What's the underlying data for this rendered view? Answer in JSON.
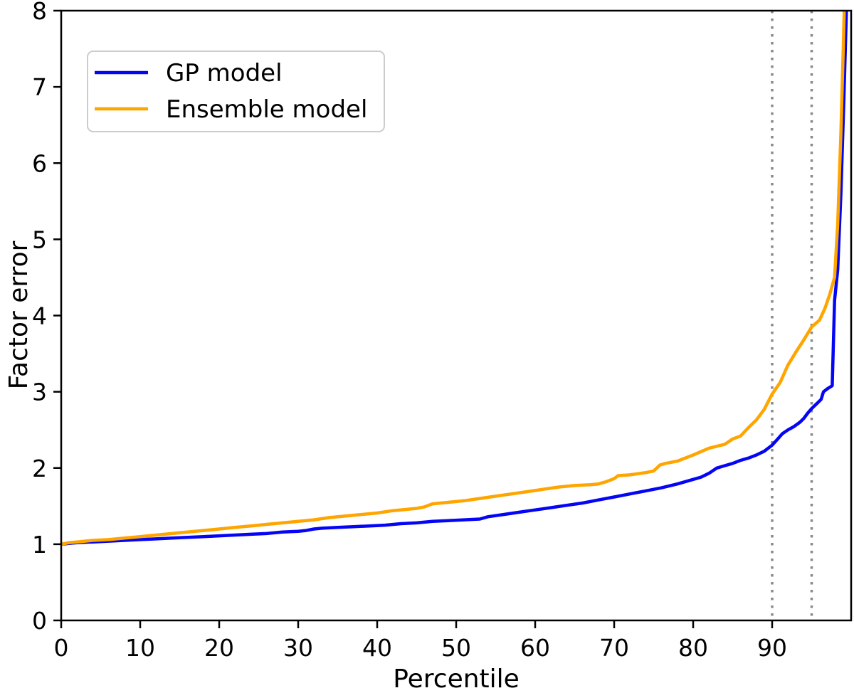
{
  "chart_data": {
    "type": "line",
    "title": "",
    "xlabel": "Percentile",
    "ylabel": "Factor error",
    "xlim": [
      0,
      100
    ],
    "ylim": [
      0,
      8
    ],
    "xticks": [
      0,
      10,
      20,
      30,
      40,
      50,
      60,
      70,
      80,
      90
    ],
    "yticks": [
      0,
      1,
      2,
      3,
      4,
      5,
      6,
      7,
      8
    ],
    "grid": false,
    "background_color": "#ffffff",
    "spine_color": "#000000",
    "legend": {
      "position": "upper left",
      "entries": [
        "GP model",
        "Ensemble model"
      ]
    },
    "vlines": [
      {
        "x": 90,
        "style": "dotted",
        "color": "#8a8a8a"
      },
      {
        "x": 95,
        "style": "dotted",
        "color": "#8a8a8a"
      }
    ],
    "series": [
      {
        "name": "GP model",
        "color": "#0505f5",
        "points": [
          [
            0,
            1.0
          ],
          [
            1,
            1.01
          ],
          [
            2,
            1.02
          ],
          [
            4,
            1.03
          ],
          [
            6,
            1.04
          ],
          [
            8,
            1.05
          ],
          [
            10,
            1.06
          ],
          [
            12,
            1.07
          ],
          [
            14,
            1.08
          ],
          [
            16,
            1.09
          ],
          [
            18,
            1.1
          ],
          [
            20,
            1.11
          ],
          [
            22,
            1.12
          ],
          [
            24,
            1.13
          ],
          [
            26,
            1.14
          ],
          [
            28,
            1.16
          ],
          [
            30,
            1.17
          ],
          [
            31,
            1.18
          ],
          [
            32,
            1.2
          ],
          [
            33,
            1.21
          ],
          [
            35,
            1.22
          ],
          [
            37,
            1.23
          ],
          [
            39,
            1.24
          ],
          [
            41,
            1.25
          ],
          [
            43,
            1.27
          ],
          [
            45,
            1.28
          ],
          [
            47,
            1.3
          ],
          [
            49,
            1.31
          ],
          [
            51,
            1.32
          ],
          [
            53,
            1.33
          ],
          [
            54,
            1.36
          ],
          [
            56,
            1.39
          ],
          [
            58,
            1.42
          ],
          [
            60,
            1.45
          ],
          [
            62,
            1.48
          ],
          [
            64,
            1.51
          ],
          [
            66,
            1.54
          ],
          [
            68,
            1.58
          ],
          [
            70,
            1.62
          ],
          [
            72,
            1.66
          ],
          [
            74,
            1.7
          ],
          [
            76,
            1.74
          ],
          [
            78,
            1.79
          ],
          [
            80,
            1.85
          ],
          [
            81,
            1.88
          ],
          [
            82,
            1.93
          ],
          [
            83,
            2.0
          ],
          [
            84,
            2.03
          ],
          [
            85,
            2.06
          ],
          [
            86,
            2.1
          ],
          [
            87,
            2.13
          ],
          [
            88,
            2.17
          ],
          [
            89,
            2.22
          ],
          [
            90,
            2.3
          ],
          [
            90.7,
            2.38
          ],
          [
            91.3,
            2.45
          ],
          [
            92,
            2.5
          ],
          [
            92.7,
            2.54
          ],
          [
            93.5,
            2.6
          ],
          [
            94,
            2.65
          ],
          [
            94.5,
            2.72
          ],
          [
            95,
            2.78
          ],
          [
            95.7,
            2.85
          ],
          [
            96.2,
            2.9
          ],
          [
            96.5,
            3.0
          ],
          [
            97,
            3.04
          ],
          [
            97.6,
            3.08
          ],
          [
            97.9,
            4.2
          ],
          [
            98.3,
            4.6
          ],
          [
            98.7,
            5.6
          ],
          [
            99.1,
            6.9
          ],
          [
            99.4,
            8.0
          ],
          [
            99.6,
            8.6
          ]
        ]
      },
      {
        "name": "Ensemble model",
        "color": "#ffa500",
        "points": [
          [
            0,
            1.0
          ],
          [
            1,
            1.02
          ],
          [
            2,
            1.03
          ],
          [
            4,
            1.05
          ],
          [
            6,
            1.06
          ],
          [
            8,
            1.08
          ],
          [
            10,
            1.1
          ],
          [
            12,
            1.12
          ],
          [
            14,
            1.14
          ],
          [
            16,
            1.16
          ],
          [
            18,
            1.18
          ],
          [
            20,
            1.2
          ],
          [
            22,
            1.22
          ],
          [
            24,
            1.24
          ],
          [
            26,
            1.26
          ],
          [
            28,
            1.28
          ],
          [
            30,
            1.3
          ],
          [
            32,
            1.32
          ],
          [
            34,
            1.35
          ],
          [
            36,
            1.37
          ],
          [
            38,
            1.39
          ],
          [
            40,
            1.41
          ],
          [
            42,
            1.44
          ],
          [
            44,
            1.46
          ],
          [
            45,
            1.47
          ],
          [
            46,
            1.49
          ],
          [
            47,
            1.53
          ],
          [
            49,
            1.55
          ],
          [
            51,
            1.57
          ],
          [
            53,
            1.6
          ],
          [
            55,
            1.63
          ],
          [
            57,
            1.66
          ],
          [
            59,
            1.69
          ],
          [
            61,
            1.72
          ],
          [
            63,
            1.75
          ],
          [
            65,
            1.77
          ],
          [
            67,
            1.78
          ],
          [
            68,
            1.79
          ],
          [
            69,
            1.82
          ],
          [
            70,
            1.86
          ],
          [
            70.5,
            1.9
          ],
          [
            72,
            1.91
          ],
          [
            74,
            1.94
          ],
          [
            75,
            1.96
          ],
          [
            75.8,
            2.04
          ],
          [
            76.5,
            2.06
          ],
          [
            78,
            2.09
          ],
          [
            80,
            2.17
          ],
          [
            82,
            2.26
          ],
          [
            84,
            2.31
          ],
          [
            85,
            2.38
          ],
          [
            86,
            2.42
          ],
          [
            87,
            2.53
          ],
          [
            88,
            2.63
          ],
          [
            89,
            2.77
          ],
          [
            90,
            2.97
          ],
          [
            91,
            3.12
          ],
          [
            92,
            3.35
          ],
          [
            93,
            3.52
          ],
          [
            94,
            3.68
          ],
          [
            95,
            3.85
          ],
          [
            96,
            3.94
          ],
          [
            96.7,
            4.1
          ],
          [
            97.3,
            4.28
          ],
          [
            97.9,
            4.5
          ],
          [
            98.3,
            5.2
          ],
          [
            98.7,
            6.4
          ],
          [
            99.0,
            7.5
          ],
          [
            99.2,
            8.3
          ]
        ]
      }
    ]
  }
}
